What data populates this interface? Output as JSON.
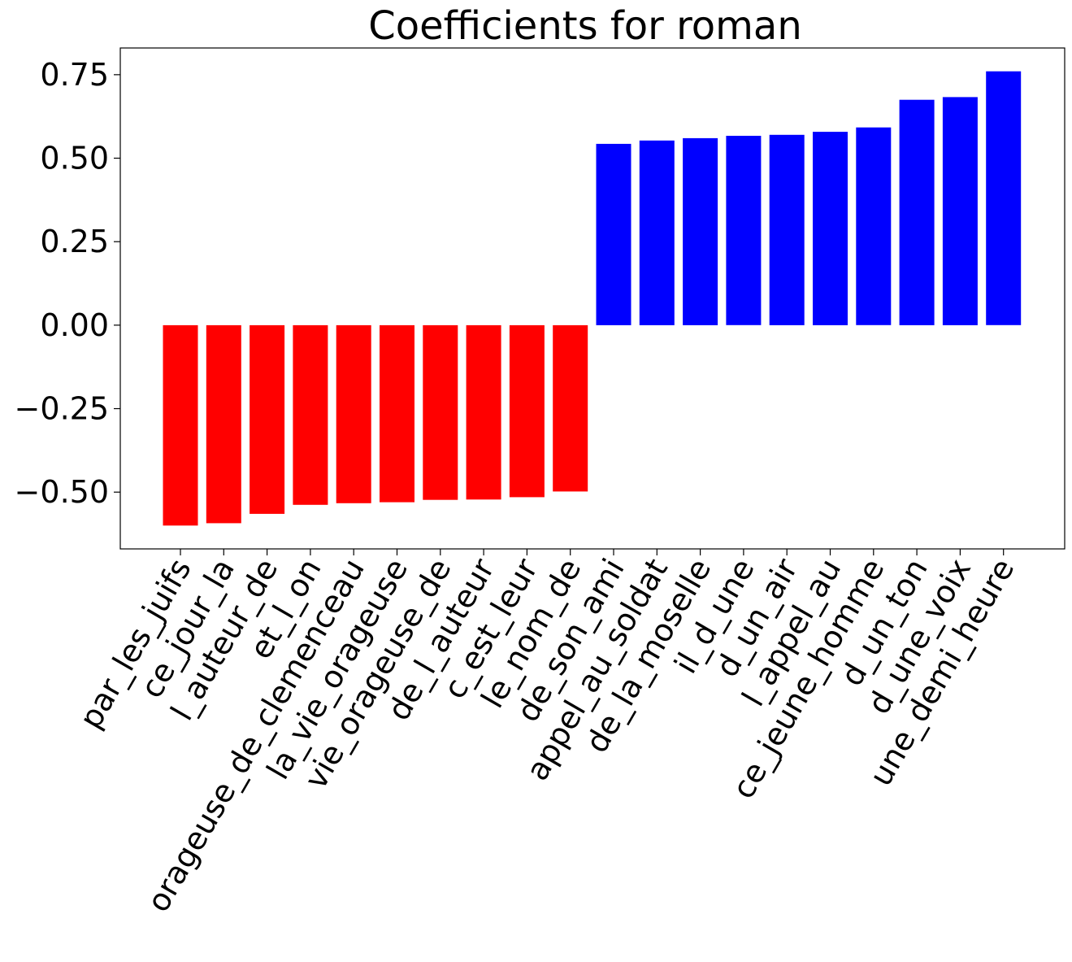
{
  "chart_data": {
    "type": "bar",
    "title": "Coefficients for roman",
    "xlabel": "",
    "ylabel": "",
    "ylim": [
      -0.67,
      0.83
    ],
    "yticks": [
      -0.5,
      -0.25,
      0.0,
      0.25,
      0.5,
      0.75
    ],
    "ytick_labels": [
      "−0.50",
      "−0.25",
      "0.00",
      "0.25",
      "0.50",
      "0.75"
    ],
    "grid": false,
    "colors": {
      "negative": "#ff0000",
      "positive": "#0000ff"
    },
    "categories": [
      "par_les_juifs",
      "ce_jour_la",
      "l_auteur_de",
      "et_l_on",
      "orageuse_de_clemenceau",
      "la_vie_orageuse",
      "vie_orageuse_de",
      "de_l_auteur",
      "c_est_leur",
      "le_nom_de",
      "de_son_ami",
      "appel_au_soldat",
      "de_la_moselle",
      "il_d_une",
      "d_un_air",
      "l_appel_au",
      "ce_jeune_homme",
      "d_un_ton",
      "d_une_voix",
      "une_demi_heure"
    ],
    "values": [
      -0.6,
      -0.593,
      -0.565,
      -0.538,
      -0.533,
      -0.53,
      -0.523,
      -0.522,
      -0.515,
      -0.498,
      0.543,
      0.553,
      0.56,
      0.567,
      0.57,
      0.579,
      0.592,
      0.675,
      0.683,
      0.76
    ]
  }
}
